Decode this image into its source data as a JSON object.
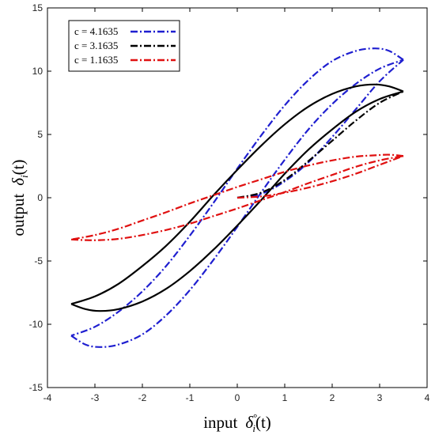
{
  "chart_data": {
    "type": "line",
    "xlabel": "input  δ°i(t)",
    "xlabel_parts": {
      "word": "input",
      "sym": "δ",
      "sup": "°",
      "sub": "i",
      "arg": "(t)"
    },
    "ylabel": "output  δi(t)",
    "ylabel_parts": {
      "word": "output",
      "sym": "δ",
      "sub": "i",
      "arg": "(t)"
    },
    "xlim": [
      -4,
      4
    ],
    "ylim": [
      -15,
      15
    ],
    "xticks": [
      -4,
      -3,
      -2,
      -1,
      0,
      1,
      2,
      3,
      4
    ],
    "yticks": [
      -15,
      -10,
      -5,
      0,
      5,
      10,
      15
    ],
    "grid": false,
    "legend_position": "top-left",
    "series": [
      {
        "name": "c = 4.1635",
        "color": "#1f1fd0",
        "style": "dash-dot",
        "initial": [
          [
            0.0,
            0.0
          ],
          [
            0.5,
            0.3
          ],
          [
            1.0,
            1.3
          ],
          [
            1.5,
            2.8
          ],
          [
            2.0,
            4.8
          ],
          [
            2.5,
            7.0
          ],
          [
            3.0,
            9.2
          ],
          [
            3.5,
            10.9
          ]
        ],
        "descending": [
          [
            3.5,
            10.9
          ],
          [
            3.2,
            11.6
          ],
          [
            2.9,
            11.8
          ],
          [
            2.5,
            11.6
          ],
          [
            2.0,
            10.8
          ],
          [
            1.5,
            9.3
          ],
          [
            1.0,
            7.3
          ],
          [
            0.5,
            4.9
          ],
          [
            0.0,
            2.3
          ],
          [
            -0.5,
            -0.4
          ],
          [
            -1.0,
            -3.0
          ],
          [
            -1.5,
            -5.4
          ],
          [
            -2.0,
            -7.4
          ],
          [
            -2.5,
            -9.0
          ],
          [
            -3.0,
            -10.2
          ],
          [
            -3.5,
            -10.9
          ]
        ],
        "ascending": [
          [
            -3.5,
            -10.9
          ],
          [
            -3.2,
            -11.6
          ],
          [
            -2.9,
            -11.8
          ],
          [
            -2.5,
            -11.6
          ],
          [
            -2.0,
            -10.8
          ],
          [
            -1.5,
            -9.3
          ],
          [
            -1.0,
            -7.3
          ],
          [
            -0.5,
            -4.9
          ],
          [
            0.0,
            -2.3
          ],
          [
            0.5,
            0.4
          ],
          [
            1.0,
            3.0
          ],
          [
            1.5,
            5.4
          ],
          [
            2.0,
            7.4
          ],
          [
            2.5,
            9.0
          ],
          [
            3.0,
            10.2
          ],
          [
            3.5,
            10.9
          ]
        ]
      },
      {
        "name": "c = 3.1635",
        "color": "#000000",
        "style": "solid",
        "initial": [
          [
            0.0,
            0.0
          ],
          [
            0.5,
            0.4
          ],
          [
            1.0,
            1.4
          ],
          [
            1.5,
            2.9
          ],
          [
            2.0,
            4.5
          ],
          [
            2.5,
            6.1
          ],
          [
            3.0,
            7.5
          ],
          [
            3.5,
            8.4
          ]
        ],
        "descending": [
          [
            3.5,
            8.4
          ],
          [
            3.2,
            8.8
          ],
          [
            2.9,
            8.95
          ],
          [
            2.5,
            8.8
          ],
          [
            2.0,
            8.2
          ],
          [
            1.5,
            7.2
          ],
          [
            1.0,
            5.8
          ],
          [
            0.5,
            4.1
          ],
          [
            0.0,
            2.2
          ],
          [
            -0.5,
            0.2
          ],
          [
            -1.0,
            -1.9
          ],
          [
            -1.5,
            -3.8
          ],
          [
            -2.0,
            -5.4
          ],
          [
            -2.5,
            -6.8
          ],
          [
            -3.0,
            -7.8
          ],
          [
            -3.5,
            -8.4
          ]
        ],
        "ascending": [
          [
            -3.5,
            -8.4
          ],
          [
            -3.2,
            -8.8
          ],
          [
            -2.9,
            -8.95
          ],
          [
            -2.5,
            -8.8
          ],
          [
            -2.0,
            -8.2
          ],
          [
            -1.5,
            -7.2
          ],
          [
            -1.0,
            -5.8
          ],
          [
            -0.5,
            -4.1
          ],
          [
            0.0,
            -2.2
          ],
          [
            0.5,
            -0.2
          ],
          [
            1.0,
            1.9
          ],
          [
            1.5,
            3.8
          ],
          [
            2.0,
            5.4
          ],
          [
            2.5,
            6.8
          ],
          [
            3.0,
            7.8
          ],
          [
            3.5,
            8.4
          ]
        ]
      },
      {
        "name": "c = 1.1635",
        "color": "#e01010",
        "style": "dash-dot",
        "initial": [
          [
            0.0,
            0.0
          ],
          [
            0.5,
            0.1
          ],
          [
            1.0,
            0.4
          ],
          [
            1.5,
            0.8
          ],
          [
            2.0,
            1.3
          ],
          [
            2.5,
            1.9
          ],
          [
            3.0,
            2.6
          ],
          [
            3.5,
            3.3
          ]
        ],
        "descending": [
          [
            3.5,
            3.3
          ],
          [
            3.2,
            3.4
          ],
          [
            2.9,
            3.35
          ],
          [
            2.5,
            3.25
          ],
          [
            2.0,
            2.95
          ],
          [
            1.5,
            2.55
          ],
          [
            1.0,
            2.05
          ],
          [
            0.5,
            1.45
          ],
          [
            0.0,
            0.85
          ],
          [
            -0.5,
            0.2
          ],
          [
            -1.0,
            -0.45
          ],
          [
            -1.5,
            -1.15
          ],
          [
            -2.0,
            -1.8
          ],
          [
            -2.5,
            -2.45
          ],
          [
            -3.0,
            -2.95
          ],
          [
            -3.5,
            -3.3
          ]
        ],
        "ascending": [
          [
            -3.5,
            -3.3
          ],
          [
            -3.2,
            -3.35
          ],
          [
            -2.9,
            -3.35
          ],
          [
            -2.5,
            -3.25
          ],
          [
            -2.0,
            -2.95
          ],
          [
            -1.5,
            -2.55
          ],
          [
            -1.0,
            -2.05
          ],
          [
            -0.5,
            -1.45
          ],
          [
            0.0,
            -0.85
          ],
          [
            0.5,
            -0.2
          ],
          [
            1.0,
            0.45
          ],
          [
            1.5,
            1.15
          ],
          [
            2.0,
            1.8
          ],
          [
            2.5,
            2.45
          ],
          [
            3.0,
            2.95
          ],
          [
            3.5,
            3.3
          ]
        ]
      }
    ]
  }
}
